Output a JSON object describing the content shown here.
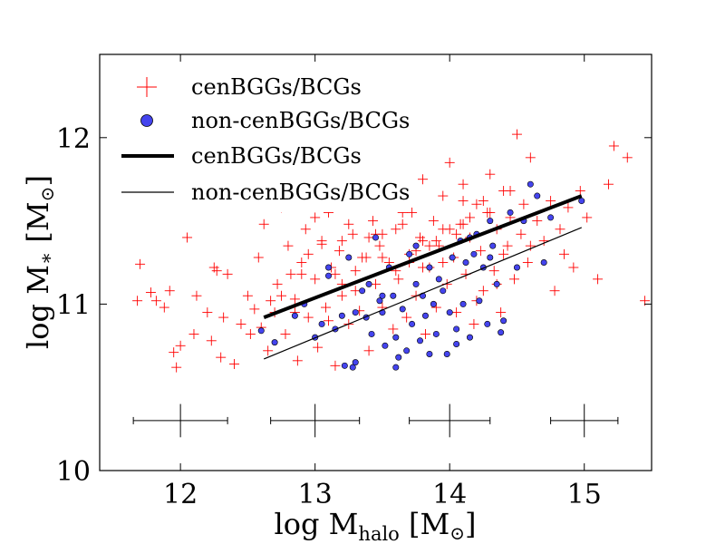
{
  "chart_data": {
    "type": "scatter",
    "title": "",
    "xlabel": {
      "main": "log M",
      "sub": "halo",
      "unit_open": " [M",
      "unit_symbol": "⊙",
      "unit_close": "]"
    },
    "ylabel": {
      "main": "log M",
      "sub": "∗",
      "unit_open": " [M",
      "unit_symbol": "⊙",
      "unit_close": "]"
    },
    "xlim": [
      11.4,
      15.5
    ],
    "ylim": [
      10.0,
      12.5
    ],
    "xticks": [
      12,
      13,
      14,
      15
    ],
    "yticks": [
      10,
      11,
      12
    ],
    "xtick_labels": [
      "12",
      "13",
      "14",
      "15"
    ],
    "ytick_labels": [
      "10",
      "11",
      "12"
    ],
    "grid": false,
    "legend_position": "top-left",
    "legend": [
      {
        "label": "cenBGGs/BCGs",
        "kind": "plus-marker"
      },
      {
        "label": "non-cenBGGs/BCGs",
        "kind": "circle-marker"
      },
      {
        "label": "cenBGGs/BCGs",
        "kind": "thick-line"
      },
      {
        "label": "non-cenBGGs/BCGs",
        "kind": "thin-line"
      }
    ],
    "series": [
      {
        "name": "cenBGGs/BCGs",
        "marker": "plus",
        "color": "#ff0000",
        "x": [
          11.68,
          11.7,
          11.78,
          11.82,
          11.88,
          11.92,
          11.95,
          11.97,
          12.0,
          12.05,
          12.1,
          12.12,
          12.2,
          12.23,
          12.25,
          12.27,
          12.3,
          12.32,
          12.35,
          12.4,
          12.45,
          12.5,
          12.52,
          12.55,
          12.58,
          12.6,
          12.62,
          12.65,
          12.67,
          12.7,
          12.72,
          12.75,
          12.78,
          12.8,
          12.82,
          12.85,
          12.87,
          12.9,
          12.93,
          12.95,
          12.98,
          13.0,
          13.02,
          13.05,
          13.08,
          13.1,
          13.12,
          13.15,
          13.18,
          13.2,
          13.22,
          13.25,
          13.28,
          13.3,
          13.33,
          13.35,
          13.38,
          13.4,
          13.43,
          13.45,
          13.48,
          13.5,
          13.52,
          13.55,
          13.58,
          13.6,
          13.62,
          13.65,
          13.68,
          13.7,
          13.72,
          13.75,
          13.78,
          13.8,
          13.82,
          13.85,
          13.88,
          13.9,
          13.92,
          13.95,
          13.98,
          14.0,
          14.03,
          14.05,
          14.08,
          14.1,
          14.12,
          14.15,
          14.18,
          14.2,
          14.23,
          14.25,
          14.28,
          14.3,
          14.33,
          14.35,
          14.38,
          14.4,
          14.43,
          14.45,
          14.48,
          14.5,
          14.53,
          14.55,
          14.58,
          14.6,
          14.65,
          14.7,
          14.75,
          14.78,
          14.82,
          14.85,
          14.88,
          14.92,
          14.97,
          15.02,
          15.1,
          15.18,
          15.22,
          15.32,
          15.45,
          12.9,
          13.05,
          13.2,
          13.35,
          13.5,
          13.65,
          13.8,
          13.95,
          14.1,
          14.25,
          14.4,
          13.1,
          13.3,
          13.6,
          13.85,
          14.0,
          14.2,
          12.95,
          13.15,
          13.45,
          13.7,
          13.9,
          14.15,
          14.35,
          13.25,
          13.55,
          13.75,
          14.05,
          14.3,
          12.85,
          13.4,
          13.8,
          14.45,
          14.6,
          13.0,
          13.5,
          13.95,
          14.1,
          12.75,
          13.2,
          13.65
        ],
        "y": [
          11.02,
          11.24,
          11.07,
          11.02,
          10.98,
          11.08,
          10.71,
          10.62,
          10.75,
          11.4,
          10.82,
          11.05,
          10.95,
          10.78,
          11.22,
          11.2,
          10.68,
          10.92,
          11.18,
          10.64,
          10.88,
          11.05,
          10.82,
          10.97,
          11.28,
          10.86,
          11.48,
          10.72,
          11.02,
          10.95,
          11.12,
          11.58,
          10.82,
          11.35,
          11.18,
          11.03,
          10.66,
          11.25,
          11.45,
          10.92,
          11.6,
          11.15,
          10.74,
          11.38,
          10.98,
          11.55,
          11.22,
          10.63,
          11.32,
          11.05,
          11.68,
          10.88,
          11.42,
          11.2,
          10.96,
          11.6,
          11.28,
          10.72,
          11.5,
          11.12,
          11.35,
          10.98,
          11.7,
          11.25,
          10.85,
          11.45,
          11.15,
          11.62,
          10.92,
          11.3,
          11.55,
          11.05,
          11.4,
          11.75,
          10.82,
          11.22,
          11.5,
          10.98,
          11.35,
          11.65,
          11.12,
          11.85,
          11.28,
          10.95,
          11.48,
          11.72,
          11.18,
          11.4,
          10.88,
          11.6,
          11.32,
          11.08,
          11.55,
          11.78,
          11.2,
          11.45,
          10.95,
          11.68,
          11.35,
          11.52,
          11.15,
          12.02,
          11.42,
          11.6,
          11.25,
          11.88,
          11.5,
          11.38,
          11.62,
          11.08,
          11.45,
          11.3,
          11.58,
          11.22,
          11.68,
          11.52,
          11.15,
          11.72,
          11.95,
          11.88,
          11.02,
          11.18,
          11.36,
          11.12,
          11.28,
          11.42,
          11.55,
          11.38,
          11.25,
          11.48,
          11.62,
          11.3,
          10.9,
          11.08,
          11.2,
          11.35,
          11.45,
          11.02,
          11.3,
          11.18,
          11.42,
          11.25,
          11.38,
          11.52,
          11.12,
          11.48,
          11.6,
          11.32,
          11.42,
          11.55,
          10.95,
          11.4,
          11.22,
          11.68,
          11.35,
          11.52,
          11.28,
          11.45,
          11.62,
          11.05,
          11.38,
          11.48
        ]
      },
      {
        "name": "non-cenBGGs/BCGs",
        "marker": "circle",
        "color": "#4444ee",
        "x": [
          12.6,
          12.7,
          12.85,
          12.92,
          13.0,
          13.05,
          13.1,
          13.15,
          13.2,
          13.22,
          13.25,
          13.28,
          13.3,
          13.35,
          13.38,
          13.4,
          13.42,
          13.45,
          13.48,
          13.5,
          13.52,
          13.55,
          13.58,
          13.6,
          13.62,
          13.65,
          13.68,
          13.7,
          13.72,
          13.75,
          13.78,
          13.8,
          13.82,
          13.85,
          13.88,
          13.9,
          13.92,
          13.95,
          13.98,
          14.0,
          14.02,
          14.05,
          14.08,
          14.1,
          14.12,
          14.15,
          14.18,
          14.2,
          14.22,
          14.25,
          14.28,
          14.3,
          14.32,
          14.35,
          14.4,
          14.45,
          14.5,
          14.55,
          14.6,
          14.65,
          14.7,
          14.75,
          14.98,
          13.3,
          13.6,
          13.85,
          14.05,
          14.38,
          13.1,
          13.5,
          13.75,
          14.15,
          14.3
        ],
        "y": [
          10.84,
          10.77,
          10.93,
          11.0,
          10.8,
          10.88,
          11.17,
          10.85,
          10.93,
          10.63,
          11.28,
          10.62,
          10.95,
          11.08,
          10.92,
          11.12,
          10.82,
          11.4,
          11.02,
          10.95,
          10.75,
          11.22,
          11.05,
          10.8,
          10.68,
          10.97,
          10.72,
          11.3,
          10.88,
          11.12,
          10.78,
          11.05,
          10.93,
          11.22,
          11.0,
          10.82,
          11.15,
          11.08,
          10.7,
          10.95,
          11.28,
          10.85,
          11.38,
          11.0,
          11.25,
          10.8,
          11.3,
          11.42,
          11.02,
          11.22,
          10.88,
          11.5,
          11.35,
          11.12,
          10.9,
          11.55,
          11.22,
          11.5,
          11.72,
          11.65,
          11.25,
          11.52,
          11.62,
          10.65,
          10.62,
          10.7,
          10.76,
          10.83,
          11.22,
          11.05,
          11.35,
          11.4,
          11.28
        ]
      }
    ],
    "fit_lines": [
      {
        "name": "cenBGGs/BCGs",
        "style": "thick",
        "x": [
          12.62,
          14.98
        ],
        "y": [
          10.92,
          11.65
        ]
      },
      {
        "name": "non-cenBGGs/BCGs",
        "style": "thin",
        "x": [
          12.62,
          14.98
        ],
        "y": [
          10.67,
          11.46
        ]
      }
    ],
    "error_bars": [
      {
        "x": 12.0,
        "y": 10.3,
        "xerr": 0.35,
        "yerr": 0.1
      },
      {
        "x": 13.0,
        "y": 10.3,
        "xerr": 0.33,
        "yerr": 0.1
      },
      {
        "x": 14.0,
        "y": 10.3,
        "xerr": 0.3,
        "yerr": 0.1
      },
      {
        "x": 15.0,
        "y": 10.3,
        "xerr": 0.25,
        "yerr": 0.1
      }
    ]
  }
}
